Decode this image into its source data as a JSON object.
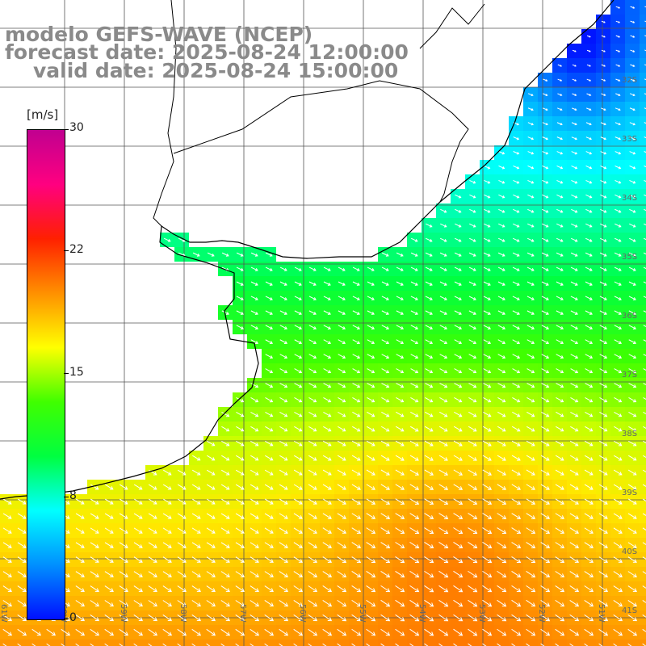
{
  "header": {
    "model": "modelo GEFS-WAVE (NCEP)",
    "forecast": "forecast date: 2025-08-24 12:00:00",
    "valid": "valid date: 2025-08-24 15:00:00"
  },
  "colorbar": {
    "unit": "[m/s]",
    "ticks": [
      "30",
      "22",
      "15",
      "8",
      "0"
    ],
    "tick_values": [
      30,
      22,
      15,
      8,
      0
    ],
    "range": [
      0,
      30
    ],
    "colors": [
      "#0010ff",
      "#0090ff",
      "#00ffff",
      "#00ff40",
      "#40ff00",
      "#ffff00",
      "#ff9000",
      "#ff2000",
      "#ff0080",
      "#c00090"
    ]
  },
  "map": {
    "lon_labels": [
      "61W",
      "60W",
      "59W",
      "58W",
      "57W",
      "56W",
      "55W",
      "54W",
      "53W",
      "52W",
      "51W"
    ],
    "lat_labels": [
      "32S",
      "33S",
      "34S",
      "35S",
      "36S",
      "37S",
      "38S",
      "39S",
      "40S",
      "41S"
    ],
    "grid": true,
    "land_color": "#ffffff",
    "coast_color": "#000000",
    "vector_color": "#ffffff",
    "wind_direction": "northwest, pointing east-southeast"
  }
}
